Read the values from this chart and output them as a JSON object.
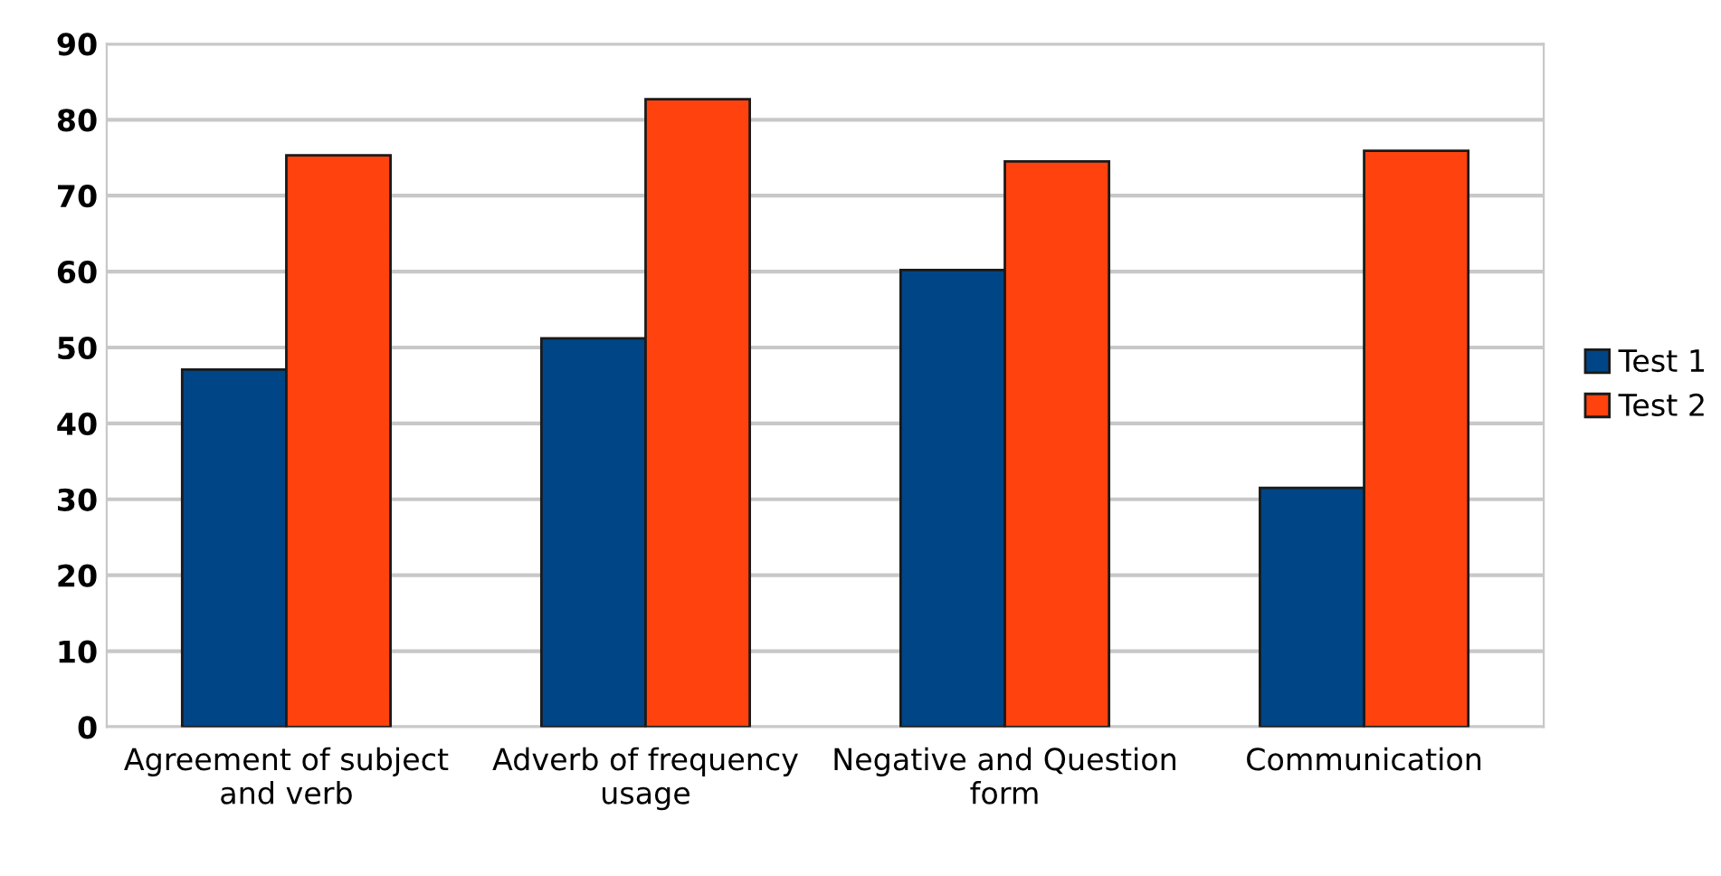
{
  "chart_data": {
    "type": "bar",
    "categories": [
      "Agreement of subject\nand verb",
      "Adverb of frequency\nusage",
      "Negative and Question\nform",
      "Communication"
    ],
    "series": [
      {
        "name": "Test 1",
        "color": "#004586",
        "values": [
          47.1,
          51.2,
          60.2,
          31.5
        ]
      },
      {
        "name": "Test 2",
        "color": "#ff420e",
        "values": [
          75.3,
          82.7,
          74.5,
          75.9
        ]
      }
    ],
    "ylim": [
      0,
      90
    ],
    "yticks": [
      0,
      10,
      20,
      30,
      40,
      50,
      60,
      70,
      80,
      90
    ],
    "grid": "y",
    "legend": "right"
  }
}
